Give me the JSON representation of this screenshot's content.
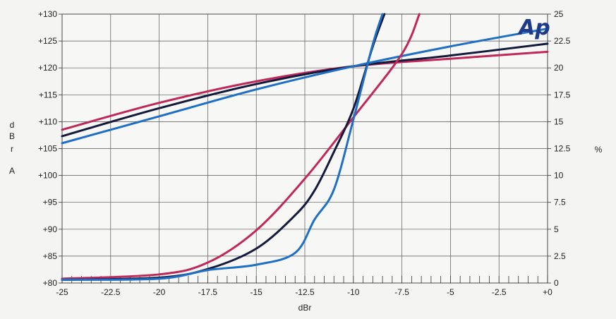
{
  "chart_data": {
    "type": "line",
    "title": "",
    "xlabel": "dBr",
    "ylabel_left_letters": [
      "d",
      "B",
      "r",
      "A"
    ],
    "ylabel_right": "%",
    "logo": "Ap",
    "xlim": [
      -25,
      0
    ],
    "ylim_left": [
      80,
      130
    ],
    "ylim_right": [
      0,
      25
    ],
    "x_ticks": [
      -25,
      -22.5,
      -20,
      -17.5,
      -15,
      -12.5,
      -10,
      -7.5,
      -5,
      -2.5,
      0
    ],
    "x_tick_labels": [
      "-25",
      "-22.5",
      "-20",
      "-17.5",
      "-15",
      "-12.5",
      "-10",
      "-7.5",
      "-5",
      "-2.5",
      "+0"
    ],
    "y_left_ticks": [
      80,
      85,
      90,
      95,
      100,
      105,
      110,
      115,
      120,
      125,
      130
    ],
    "y_left_tick_labels": [
      "+80",
      "+85",
      "+90",
      "+95",
      "+100",
      "+105",
      "+110",
      "+115",
      "+120",
      "+125",
      "+130"
    ],
    "y_right_ticks": [
      0,
      2.5,
      5,
      7.5,
      10,
      12.5,
      15,
      17.5,
      20,
      22.5,
      25
    ],
    "y_right_tick_labels": [
      "0",
      "2.5",
      "5",
      "7.5",
      "10",
      "12.5",
      "15",
      "17.5",
      "20",
      "22.5",
      "25"
    ],
    "grid": true,
    "series": [
      {
        "axis": "left",
        "color": "#c0285a",
        "x": [
          -25,
          -20,
          -15,
          -10,
          -5,
          0
        ],
        "y": [
          108.5,
          113.5,
          117.5,
          120.3,
          121.7,
          123
        ]
      },
      {
        "axis": "left",
        "color": "#141a3c",
        "x": [
          -25,
          -20,
          -15,
          -10,
          -5,
          0
        ],
        "y": [
          107.3,
          112.5,
          117,
          120.3,
          122.3,
          124.5
        ]
      },
      {
        "axis": "left",
        "color": "#1f6fc4",
        "x": [
          -25,
          -20,
          -15,
          -10,
          -5,
          0
        ],
        "y": [
          106,
          111,
          116,
          120.3,
          124,
          127.3
        ]
      },
      {
        "axis": "right",
        "color": "#c0285a",
        "x": [
          -25,
          -20,
          -17.5,
          -15,
          -12.5,
          -10,
          -7.5,
          -6.6
        ],
        "y": [
          0.4,
          0.8,
          1.9,
          4.9,
          9.7,
          15.4,
          21.3,
          25
        ]
      },
      {
        "axis": "right",
        "color": "#141a3c",
        "x": [
          -25,
          -20,
          -17.5,
          -15,
          -13,
          -12,
          -11,
          -10,
          -9,
          -8.4
        ],
        "y": [
          0.3,
          0.5,
          1.3,
          3.2,
          6.3,
          8.6,
          12.2,
          16.2,
          22.0,
          25
        ]
      },
      {
        "axis": "right",
        "color": "#1f6fc4",
        "x": [
          -25,
          -20,
          -17.5,
          -15,
          -13,
          -12,
          -11,
          -10,
          -9,
          -8.5
        ],
        "y": [
          0.3,
          0.4,
          1.2,
          1.7,
          2.8,
          5.9,
          8.7,
          15.2,
          22.2,
          25
        ]
      }
    ]
  }
}
